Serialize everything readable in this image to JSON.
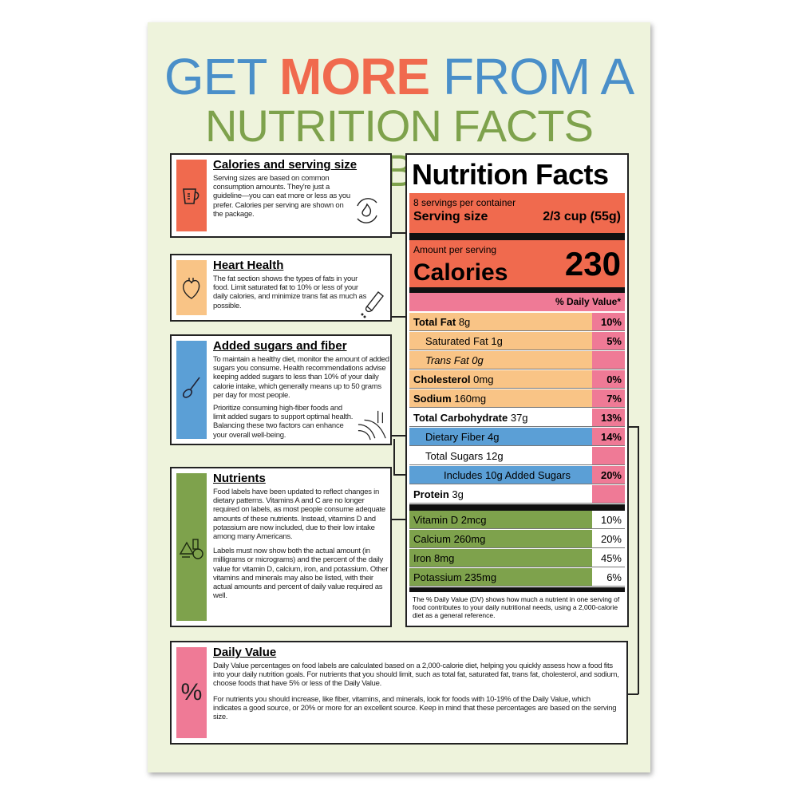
{
  "title": {
    "line1_a": "GET ",
    "line1_b": "MORE",
    "line1_c": " FROM A",
    "line2": "NUTRITION FACTS LABEL"
  },
  "colors": {
    "blue": "#4a8fc9",
    "orange": "#f06a4e",
    "green": "#7ea24c",
    "peach": "#f9c486",
    "pink": "#ef7a96",
    "background": "#eef3dc"
  },
  "sections": [
    {
      "title": "Calories and serving size",
      "icon": "measuring-cup-icon",
      "text": "Serving sizes are based on common consumption amounts. They're just a guideline—you can eat more or less as you prefer. Calories per serving are shown on the package."
    },
    {
      "title": "Heart Health",
      "icon": "heart-icon",
      "text": "The fat section shows the types of fats in your food. Limit saturated fat to 10% or less of your daily calories, and minimize trans fat as much as possible."
    },
    {
      "title": "Added sugars and fiber",
      "icon": "spoon-icon",
      "text": "To maintain a healthy diet, monitor the amount of added sugars you consume. Health recommendations advise keeping added sugars to less than 10% of your daily calorie intake, which generally means up to 50 grams per day for most people.",
      "text2": "Prioritize consuming high-fiber foods and limit added sugars to support optimal health. Balancing these two factors can enhance your overall well-being."
    },
    {
      "title": "Nutrients",
      "icon": "food-group-icon",
      "text": "Food labels have been updated to reflect changes in dietary patterns. Vitamins A and C are no longer required on labels, as most people consume adequate amounts of these nutrients. Instead, vitamins D and potassium are now included, due to their low intake among many Americans.",
      "text2": "Labels must now show both the actual amount (in milligrams or micrograms) and the percent of the daily value for vitamin D, calcium, iron, and potassium. Other vitamins and minerals may also be listed, with their actual amounts and percent of daily value required as well."
    },
    {
      "title": "Daily Value",
      "icon_text": "%",
      "text": "Daily Value percentages on food labels are calculated based on a 2,000-calorie diet, helping you quickly assess how a food fits into your daily nutrition goals. For nutrients that you should limit, such as total fat, saturated fat, trans fat, cholesterol, and sodium, choose foods that have 5% or less of the Daily Value.",
      "text2": "For nutrients you should increase, like fiber, vitamins, and minerals, look for foods with 10-19% of the Daily Value, which indicates a good source, or 20% or more for an excellent source. Keep in mind that these percentages are based on the serving size."
    }
  ],
  "label": {
    "title": "Nutrition Facts",
    "servings": "8 servings per container",
    "serving_size_label": "Serving size",
    "serving_size_value": "2/3 cup (55g)",
    "amount_per_serving": "Amount per serving",
    "calories_label": "Calories",
    "calories_value": "230",
    "dv_header": "% Daily Value*",
    "rows": [
      {
        "name": "Total Fat",
        "amount": "8g",
        "dv": "10%"
      },
      {
        "name": "Saturated Fat",
        "amount": "1g",
        "dv": "5%"
      },
      {
        "name": "Trans Fat",
        "amount": "0g",
        "dv": ""
      },
      {
        "name": "Cholesterol",
        "amount": "0mg",
        "dv": "0%"
      },
      {
        "name": "Sodium",
        "amount": "160mg",
        "dv": "7%"
      },
      {
        "name": "Total Carbohydrate",
        "amount": "37g",
        "dv": "13%"
      },
      {
        "name": "Dietary Fiber",
        "amount": "4g",
        "dv": "14%"
      },
      {
        "name": "Total Sugars",
        "amount": "12g",
        "dv": ""
      },
      {
        "name": "Includes 10g Added Sugars",
        "amount": "",
        "dv": "20%"
      },
      {
        "name": "Protein",
        "amount": "3g",
        "dv": ""
      }
    ],
    "vitamins": [
      {
        "name": "Vitamin D 2mcg",
        "dv": "10%"
      },
      {
        "name": "Calcium 260mg",
        "dv": "20%"
      },
      {
        "name": "Iron 8mg",
        "dv": "45%"
      },
      {
        "name": "Potassium 235mg",
        "dv": "6%"
      }
    ],
    "footnote": "The % Daily Value (DV) shows how much a nutrient in one serving of food contributes to your daily nutritional needs, using a 2,000-calorie diet as a general reference."
  }
}
